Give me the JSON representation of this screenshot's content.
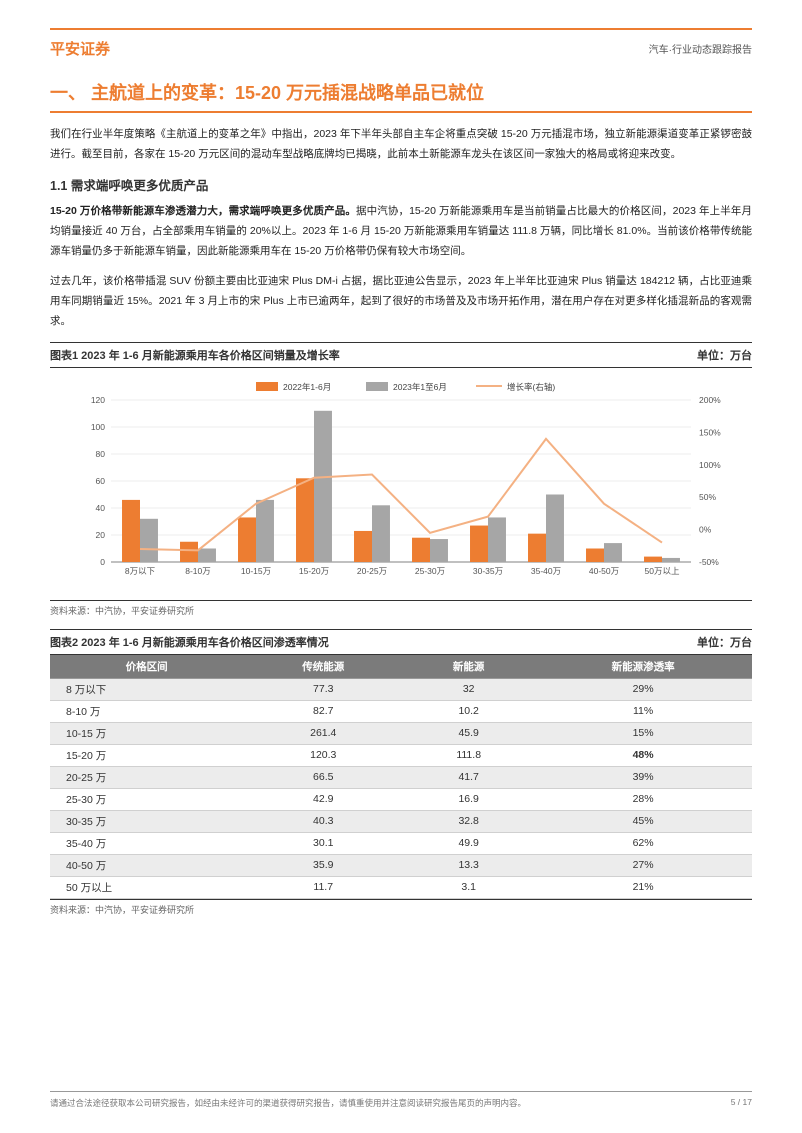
{
  "header": {
    "brand": "平安证券",
    "right": "汽车·行业动态跟踪报告"
  },
  "section": {
    "title": "一、 主航道上的变革：15-20 万元插混战略单品已就位"
  },
  "para1": "我们在行业半年度策略《主航道上的变革之年》中指出，2023 年下半年头部自主车企将重点突破 15-20 万元插混市场，独立新能源渠道变革正紧锣密鼓进行。截至目前，各家在 15-20 万元区间的混动车型战略底牌均已揭晓，此前本土新能源车龙头在该区间一家独大的格局或将迎来改变。",
  "subhead11": "1.1 需求端呼唤更多优质产品",
  "para2_bold": "15-20 万价格带新能源车渗透潜力大，需求端呼唤更多优质产品。",
  "para2_rest": "据中汽协，15-20 万新能源乘用车是当前销量占比最大的价格区间，2023 年上半年月均销量接近 40 万台，占全部乘用车销量的 20%以上。2023 年 1-6 月 15-20 万新能源乘用车销量达 111.8 万辆，同比增长 81.0%。当前该价格带传统能源车销量仍多于新能源车销量，因此新能源乘用车在 15-20 万价格带仍保有较大市场空间。",
  "para3": "过去几年，该价格带插混 SUV 份额主要由比亚迪宋 Plus DM-i 占据，据比亚迪公告显示，2023 年上半年比亚迪宋 Plus 销量达 184212 辆，占比亚迪乘用车同期销量近 15%。2021 年 3 月上市的宋 Plus 上市已逾两年，起到了很好的市场普及及市场开拓作用，潜在用户存在对更多样化插混新品的客观需求。",
  "chart1": {
    "type": "bar+line",
    "title_left": "图表1    2023 年 1-6 月新能源乘用车各价格区间销量及增长率",
    "title_right": "单位：万台",
    "categories": [
      "8万以下",
      "8-10万",
      "10-15万",
      "15-20万",
      "20-25万",
      "25-30万",
      "30-35万",
      "35-40万",
      "40-50万",
      "50万以上"
    ],
    "series_a_label": "2022年1-6月",
    "series_a": [
      46,
      15,
      33,
      62,
      23,
      18,
      27,
      21,
      10,
      4
    ],
    "series_a_color": "#ed7d31",
    "series_b_label": "2023年1至6月",
    "series_b": [
      32,
      10,
      46,
      112,
      42,
      17,
      33,
      50,
      14,
      3
    ],
    "series_b_color": "#a6a6a6",
    "line_label": "增长率(右轴)",
    "line_values": [
      -30,
      -32,
      40,
      80,
      85,
      -5,
      20,
      140,
      40,
      -20
    ],
    "line_color": "#f4b183",
    "yleft_ticks": [
      0,
      20,
      40,
      60,
      80,
      100,
      120
    ],
    "yright_ticks": [
      -50,
      0,
      50,
      100,
      150,
      200
    ],
    "yright_labels": [
      "-50%",
      "0%",
      "50%",
      "100%",
      "150%",
      "200%"
    ],
    "grid_color": "#dcdcdc",
    "axis_color": "#808080",
    "tick_fontsize": 8.5,
    "bar_group_width": 0.62,
    "source": "资料来源：中汽协，平安证券研究所"
  },
  "chart2": {
    "title_left": "图表2    2023 年 1-6 月新能源乘用车各价格区间渗透率情况",
    "title_right": "单位：万台",
    "columns": [
      "价格区间",
      "传统能源",
      "新能源",
      "新能源渗透率"
    ],
    "header_bg": "#7b7b7b",
    "header_color": "#ffffff",
    "zebra_bg": "#ececec",
    "rows": [
      {
        "c": [
          "8 万以下",
          "77.3",
          "32",
          "29%"
        ],
        "zebra": true
      },
      {
        "c": [
          "8-10 万",
          "82.7",
          "10.2",
          "11%"
        ],
        "zebra": false
      },
      {
        "c": [
          "10-15 万",
          "261.4",
          "45.9",
          "15%"
        ],
        "zebra": true
      },
      {
        "c": [
          "15-20 万",
          "120.3",
          "111.8",
          "48%"
        ],
        "zebra": false,
        "bold": true
      },
      {
        "c": [
          "20-25 万",
          "66.5",
          "41.7",
          "39%"
        ],
        "zebra": true
      },
      {
        "c": [
          "25-30 万",
          "42.9",
          "16.9",
          "28%"
        ],
        "zebra": false
      },
      {
        "c": [
          "30-35 万",
          "40.3",
          "32.8",
          "45%"
        ],
        "zebra": true
      },
      {
        "c": [
          "35-40 万",
          "30.1",
          "49.9",
          "62%"
        ],
        "zebra": false
      },
      {
        "c": [
          "40-50 万",
          "35.9",
          "13.3",
          "27%"
        ],
        "zebra": true
      },
      {
        "c": [
          "50 万以上",
          "11.7",
          "3.1",
          "21%"
        ],
        "zebra": false
      }
    ],
    "source": "资料来源：中汽协，平安证券研究所"
  },
  "footer": {
    "left": "请通过合法途径获取本公司研究报告，如经由未经许可的渠道获得研究报告，请慎重使用并注意阅读研究报告尾页的声明内容。",
    "right": "5 / 17"
  }
}
